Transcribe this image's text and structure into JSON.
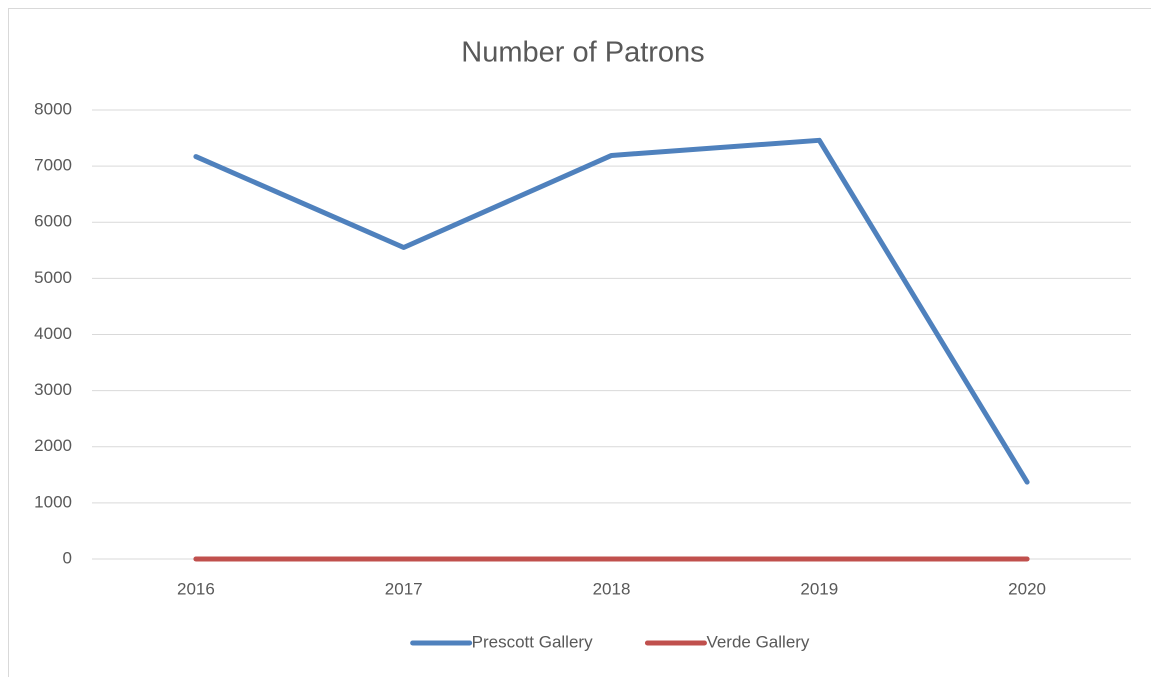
{
  "chart_data": {
    "type": "line",
    "title": "Number of Patrons",
    "categories": [
      "2016",
      "2017",
      "2018",
      "2019",
      "2020"
    ],
    "series": [
      {
        "name": "Prescott Gallery",
        "color": "#4f81bd",
        "values": [
          7170,
          5550,
          7190,
          7460,
          1370
        ]
      },
      {
        "name": "Verde Gallery",
        "color": "#c0504d",
        "values": [
          0,
          0,
          0,
          0,
          0
        ]
      }
    ],
    "ylim": [
      0,
      8000
    ],
    "yticks": [
      0,
      1000,
      2000,
      3000,
      4000,
      5000,
      6000,
      7000,
      8000
    ],
    "grid": true,
    "legend": "bottom"
  }
}
